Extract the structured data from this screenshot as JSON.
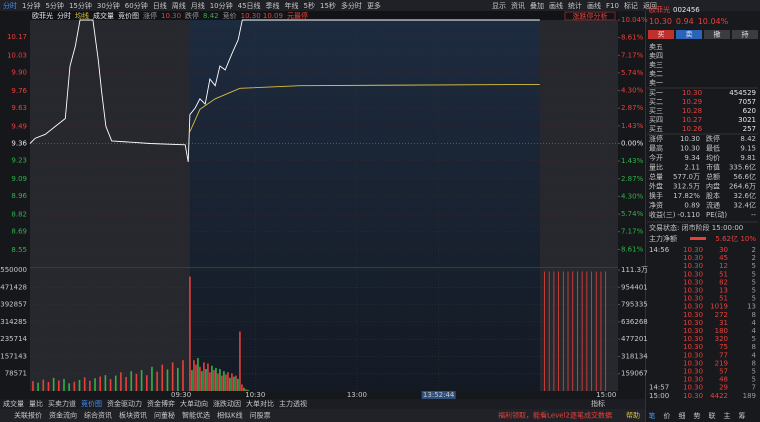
{
  "toolbar": {
    "periods": [
      "分时",
      "1分钟",
      "5分钟",
      "15分钟",
      "30分钟",
      "60分钟",
      "日线",
      "周线",
      "月线",
      "10分钟",
      "45日线",
      "季线",
      "年线",
      "5秒",
      "15秒",
      "多分时",
      "更多"
    ],
    "tools": [
      "显示",
      "资讯",
      "叠加",
      "画线",
      "统计",
      "画线",
      "F10",
      "标记",
      "返回"
    ]
  },
  "header": {
    "name": "欧菲光",
    "toggle": "竞价图",
    "limit_up_label": "涨停",
    "limit_up": "10.30",
    "limit_down_label": "跌停",
    "limit_down": "8.42",
    "auction_label": "竞价",
    "auction_prices": "10.30 10.09",
    "auction_note": "元最停",
    "analysis": "涨跌停分析"
  },
  "chart_data": [
    {
      "type": "line",
      "xlim": [
        0,
        100
      ],
      "ylim": [
        8.42,
        10.3
      ],
      "yticks": [
        10.17,
        10.03,
        {
          "value": 9.9,
          "label": "9.90"
        },
        9.76,
        9.63,
        9.49,
        9.36,
        9.23,
        9.09,
        8.96,
        8.82,
        8.69,
        8.55
      ],
      "y2lim": [
        -10.04,
        10.04
      ],
      "y2ticks": [
        {
          "value": 10.04,
          "label": "10.04%"
        },
        {
          "value": 8.61,
          "label": "8.61%"
        },
        {
          "value": 7.17,
          "label": "7.17%"
        },
        {
          "value": 5.74,
          "label": "5.74%"
        },
        {
          "value": 4.3,
          "label": "4.30%"
        },
        {
          "value": 2.87,
          "label": "2.87%"
        },
        {
          "value": 1.43,
          "label": "1.43%"
        },
        {
          "value": 0,
          "label": "0.00%"
        },
        {
          "value": -1.43,
          "label": "1.43%"
        },
        {
          "value": -2.87,
          "label": "2.87%"
        },
        {
          "value": -4.3,
          "label": "4.30%"
        },
        {
          "value": -5.74,
          "label": "5.74%"
        },
        {
          "value": -7.17,
          "label": "7.17%"
        },
        {
          "value": -8.61,
          "label": "8.61%"
        }
      ],
      "xticks": [
        {
          "value": 25.7,
          "label": "09:30"
        },
        {
          "value": 38.3,
          "label": "10:30"
        },
        {
          "value": 55.6,
          "label": "13:00"
        },
        {
          "value": 69.5,
          "label": "13:52:44"
        },
        {
          "value": 98,
          "label": "15:00"
        }
      ],
      "grid": true,
      "series": [
        {
          "name": "分时",
          "color": "#ffffff",
          "x": [
            0,
            0.9,
            2.6,
            4.3,
            6.0,
            6.8,
            7.7,
            8.5,
            10.7,
            11.6,
            12.2,
            12.9,
            13.9,
            20.4,
            26.4,
            26.9,
            27.2,
            28.1,
            28.9,
            29.8,
            30.6,
            31.5,
            32.3,
            33.2,
            34.4,
            35.4,
            36.1,
            86.7
          ],
          "values": [
            9.36,
            9.4,
            9.43,
            9.49,
            9.55,
            9.95,
            10.1,
            10.3,
            10.3,
            10.0,
            9.75,
            9.49,
            9.38,
            9.36,
            9.35,
            9.22,
            9.58,
            9.63,
            9.7,
            9.66,
            9.85,
            9.8,
            9.95,
            9.92,
            10.05,
            10.15,
            10.3,
            10.3
          ]
        },
        {
          "name": "均线",
          "color": "#d8c040",
          "x": [
            27.2,
            28.9,
            31.5,
            35.7,
            45.9,
            86.7
          ],
          "values": [
            9.45,
            9.62,
            9.7,
            9.78,
            9.8,
            9.81
          ]
        }
      ]
    },
    {
      "type": "bar",
      "xlim": [
        0,
        100
      ],
      "ylim": [
        0,
        550000
      ],
      "yticks": [
        550000,
        471428,
        392857,
        314285,
        235714,
        157143,
        78571
      ],
      "y2lim": [
        0,
        1113468
      ],
      "y2ticks": [
        {
          "value": 1113468,
          "label": "111.3万"
        },
        954401,
        795335,
        636268,
        477201,
        318134,
        159067
      ],
      "series": [
        {
          "name": "成交量",
          "x": [
            0.5,
            1.38,
            2.26,
            3.14,
            4.02,
            4.9,
            5.78,
            6.66,
            7.54,
            8.42,
            9.3,
            10.18,
            11.06,
            11.94,
            12.82,
            13.7,
            14.58,
            15.46,
            16.34,
            17.22,
            18.1,
            18.98,
            19.86,
            20.74,
            21.62,
            22.5,
            23.38,
            24.26,
            25.14,
            26.02,
            27.2,
            27.54,
            27.88,
            28.22,
            28.56,
            28.9,
            29.24,
            29.58,
            29.92,
            30.26,
            30.6,
            30.94,
            31.28,
            31.62,
            31.96,
            32.3,
            32.64,
            32.98,
            33.32,
            33.66,
            34.0,
            34.34,
            34.68,
            35.02,
            35.36,
            35.7,
            36.04,
            36.38,
            36.72,
            37.06
          ],
          "values": [
            45000,
            38000,
            52000,
            41000,
            60000,
            48000,
            55000,
            35000,
            42000,
            50000,
            62000,
            47000,
            58000,
            66000,
            72000,
            54000,
            70000,
            85000,
            64000,
            90000,
            78000,
            95000,
            72000,
            110000,
            88000,
            120000,
            98000,
            130000,
            105000,
            140000,
            520000,
            95000,
            140000,
            120000,
            150000,
            110000,
            90000,
            130000,
            100000,
            125000,
            85000,
            115000,
            95000,
            105000,
            80000,
            100000,
            70000,
            90000,
            75000,
            85000,
            60000,
            80000,
            65000,
            70000,
            55000,
            270000,
            30000,
            15000,
            8000,
            5000
          ],
          "colors": [
            "#e8413c",
            "#2fb34a",
            "#e8413c",
            "#e8413c",
            "#2fb34a",
            "#e8413c",
            "#2fb34a",
            "#2fb34a",
            "#e8413c",
            "#2fb34a",
            "#e8413c",
            "#e8413c",
            "#2fb34a",
            "#e8413c",
            "#2fb34a",
            "#e8413c",
            "#2fb34a",
            "#e8413c",
            "#e8413c",
            "#2fb34a",
            "#e8413c",
            "#2fb34a",
            "#e8413c",
            "#2fb34a",
            "#e8413c",
            "#e8413c",
            "#2fb34a",
            "#e8413c",
            "#2fb34a",
            "#e8413c",
            "#e8413c",
            "#2fb34a",
            "#e8413c",
            "#e8413c",
            "#2fb34a",
            "#e8413c",
            "#2fb34a",
            "#e8413c",
            "#2fb34a",
            "#e8413c",
            "#e8413c",
            "#2fb34a",
            "#e8413c",
            "#2fb34a",
            "#e8413c",
            "#2fb34a",
            "#e8413c",
            "#2fb34a",
            "#e8413c",
            "#e8413c",
            "#2fb34a",
            "#e8413c",
            "#2fb34a",
            "#e8413c",
            "#2fb34a",
            "#e8413c",
            "#e8413c",
            "#2fb34a",
            "#e8413c",
            "#2fb34a"
          ]
        },
        {
          "axis": "y2",
          "color": "#e8413c",
          "x": [
            87.5,
            88.3,
            89.1,
            89.9,
            90.7,
            91.5,
            92.3,
            93.1,
            93.9,
            94.7,
            95.5,
            96.3,
            97.1,
            97.9
          ],
          "values": [
            1100000,
            1100000,
            1100000,
            1100000,
            1100000,
            1100000,
            1100000,
            1100000,
            1100000,
            1100000,
            1100000,
            1100000,
            1100000,
            1100000
          ]
        }
      ]
    }
  ],
  "tabs": [
    "成交量",
    "量比",
    "买卖力道",
    "竞价图",
    "资金驱动力",
    "资金博弈",
    "大单动向",
    "涨跌动因",
    "大单对比",
    "主力透视"
  ],
  "footer": {
    "links": [
      "关联报价",
      "资金流向",
      "综合资讯",
      "板块资讯",
      "问董秘",
      "智能优选",
      "相似K线",
      "问股票"
    ],
    "indicator": "指标",
    "promo": "福利领取，能看Level2逐笔成交数据",
    "help": "帮助"
  },
  "quote": {
    "name": "欧菲光",
    "code": "002456",
    "price": "10.30",
    "change": "0.94",
    "change_pct": "10.04%",
    "buttons": [
      "买",
      "卖",
      "撤",
      "持"
    ],
    "asks": [
      "卖五",
      "卖四",
      "卖三",
      "卖二",
      "卖一"
    ],
    "bids": [
      [
        "买一",
        "10.30",
        "454529"
      ],
      [
        "买二",
        "10.29",
        "7057"
      ],
      [
        "买三",
        "10.28",
        "620"
      ],
      [
        "买四",
        "10.27",
        "3021"
      ],
      [
        "买五",
        "10.26",
        "257"
      ]
    ],
    "stats": [
      {
        "cells": [
          "涨停",
          "10.30",
          "跌停",
          "8.42"
        ],
        "colors": [
          "#e8413c",
          "#2fb34a"
        ]
      },
      {
        "cells": [
          "最高",
          "10.30",
          "最低",
          "9.15"
        ],
        "colors": [
          "#e8413c",
          "#2fb34a"
        ]
      },
      {
        "cells": [
          "今开",
          "9.34",
          "均价",
          "9.81"
        ],
        "colors": [
          "#2fb34a",
          "#e8413c"
        ]
      },
      {
        "cells": [
          "量比",
          "2.11",
          "市值",
          "335.6亿"
        ],
        "colors": [
          "#e8413c",
          "#e6e6e6"
        ]
      },
      {
        "cells": [
          "总量",
          "577.0万",
          "总额",
          "56.6亿"
        ],
        "colors": [
          "#e6e6e6",
          "#e8813c"
        ]
      },
      {
        "cells": [
          "外盘",
          "312.5万",
          "内盘",
          "264.6万"
        ],
        "colors": [
          "#e8413c",
          "#2fb34a"
        ]
      },
      {
        "cells": [
          "换手",
          "17.82%",
          "股本",
          "32.6亿"
        ],
        "colors": [
          "#e6e6e6",
          "#e6e6e6"
        ]
      },
      {
        "cells": [
          "净资",
          "0.89",
          "流通",
          "32.4亿"
        ],
        "colors": [
          "#e6e6e6",
          "#e6e6e6"
        ]
      },
      {
        "cells": [
          "收益(三)",
          "-0.110",
          "PE(动)",
          "--"
        ],
        "colors": [
          "#e6e6e6",
          "#e6e6e6"
        ]
      }
    ],
    "status": "交易状态: 闭市阶段 15:00:00",
    "flow": {
      "label": "主力净额",
      "amount": "5.62亿",
      "ratio": "10%"
    },
    "trades": [
      {
        "time": "14:56",
        "price": "10.30",
        "volume": "30",
        "count": "2"
      },
      {
        "price": "10.30",
        "volume": "45",
        "count": "2"
      },
      {
        "price": "10.30",
        "volume": "12",
        "count": "5"
      },
      {
        "price": "10.30",
        "volume": "51",
        "count": "5"
      },
      {
        "price": "10.30",
        "volume": "82",
        "count": "5"
      },
      {
        "price": "10.30",
        "volume": "13",
        "count": "5"
      },
      {
        "price": "10.30",
        "volume": "51",
        "count": "5"
      },
      {
        "price": "10.30",
        "volume": "1019",
        "count": "13"
      },
      {
        "price": "10.30",
        "volume": "272",
        "count": "8"
      },
      {
        "price": "10.30",
        "volume": "31",
        "count": "4"
      },
      {
        "price": "10.30",
        "volume": "180",
        "count": "4"
      },
      {
        "price": "10.30",
        "volume": "320",
        "count": "5"
      },
      {
        "price": "10.30",
        "volume": "75",
        "count": "8"
      },
      {
        "price": "10.30",
        "volume": "77",
        "count": "4"
      },
      {
        "price": "10.30",
        "volume": "219",
        "count": "8"
      },
      {
        "price": "10.30",
        "volume": "57",
        "count": "5"
      },
      {
        "price": "10.30",
        "volume": "48",
        "count": "5"
      },
      {
        "time": "14:57",
        "price": "10.30",
        "volume": "29",
        "count": "7"
      },
      {
        "time": "15:00",
        "price": "10.30",
        "volume": "4422",
        "count": "189"
      }
    ],
    "tabs": [
      "笔",
      "价",
      "细",
      "势",
      "联",
      "主",
      "筹"
    ]
  }
}
